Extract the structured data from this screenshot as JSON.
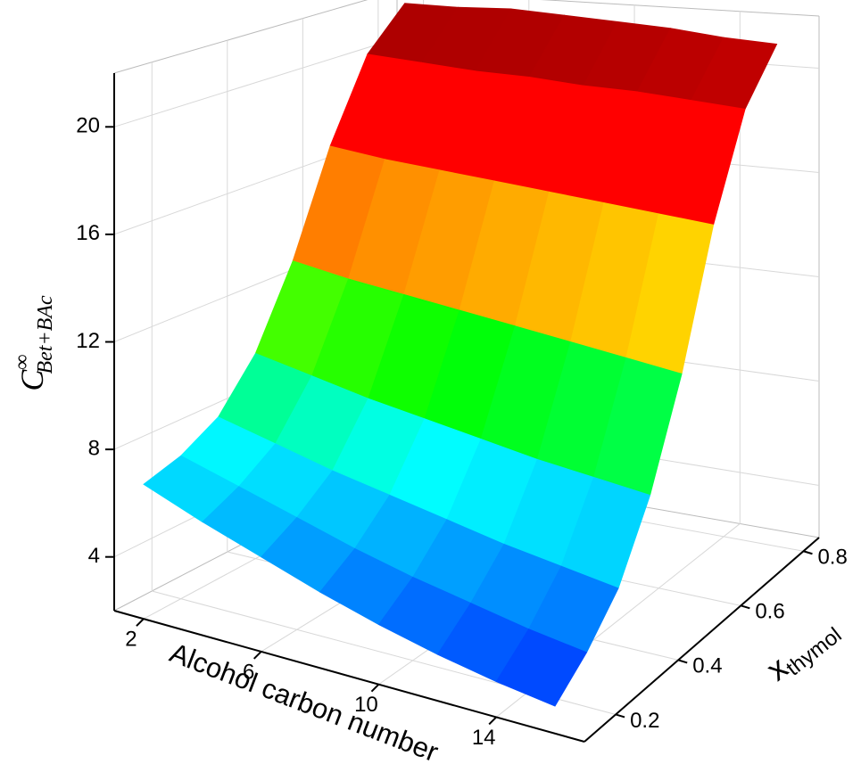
{
  "chart_data": {
    "type": "surface",
    "x_label": "Alcohol carbon number",
    "y_label": {
      "main": "x",
      "sub": "thymol"
    },
    "z_label": {
      "main": "C",
      "sup": "∞",
      "sub": "Bet+BAc"
    },
    "x": [
      2,
      4,
      6,
      8,
      10,
      12,
      14,
      16
    ],
    "y": [
      0.1,
      0.2,
      0.3,
      0.4,
      0.5,
      0.6,
      0.7,
      0.8
    ],
    "z": [
      [
        7.0,
        6.2,
        5.5,
        4.8,
        4.2,
        3.7,
        3.3,
        3.0
      ],
      [
        7.4,
        6.8,
        6.2,
        5.6,
        5.1,
        4.7,
        4.3,
        4.0
      ],
      [
        8.2,
        7.7,
        7.2,
        6.8,
        6.4,
        6.0,
        5.7,
        5.4
      ],
      [
        10.0,
        9.6,
        9.2,
        8.9,
        8.6,
        8.3,
        8.1,
        7.9
      ],
      [
        13.0,
        12.7,
        12.5,
        12.3,
        12.1,
        11.9,
        11.7,
        11.5
      ],
      [
        17.0,
        16.8,
        16.7,
        16.6,
        16.5,
        16.4,
        16.3,
        16.2
      ],
      [
        20.2,
        20.1,
        20.0,
        20.0,
        19.9,
        19.9,
        19.8,
        19.7
      ],
      [
        21.8,
        21.8,
        21.9,
        21.8,
        21.7,
        21.6,
        21.4,
        21.3
      ]
    ],
    "colormap": [
      "#0000ff",
      "#0080ff",
      "#00ffff",
      "#00ff00",
      "#ffff00",
      "#ff0000",
      "#ff0000",
      "#800000"
    ],
    "xlim": [
      1,
      17
    ],
    "xticks": [
      2,
      6,
      10,
      14
    ],
    "ylim": [
      0.1,
      0.85
    ],
    "yticks": [
      0.2,
      0.4,
      0.6,
      0.8
    ],
    "zlim": [
      2,
      22
    ],
    "zticks": [
      4,
      8,
      12,
      16,
      20
    ],
    "grid": true
  }
}
